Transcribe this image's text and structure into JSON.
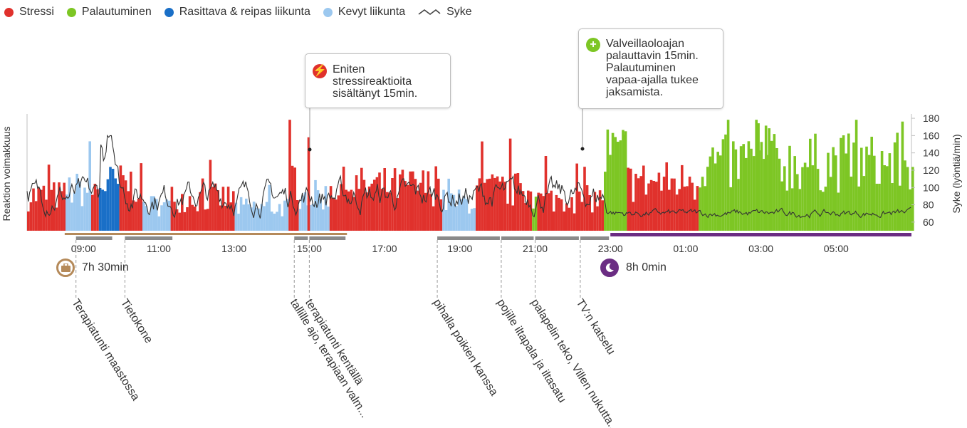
{
  "legend": [
    {
      "label": "Stressi",
      "color": "#e0312c"
    },
    {
      "label": "Palautuminen",
      "color": "#7dc624"
    },
    {
      "label": "Rasittava & reipas liikunta",
      "color": "#1a6fc7"
    },
    {
      "label": "Kevyt liikunta",
      "color": "#9cc8ef"
    },
    {
      "label": "Syke",
      "color": "#444444",
      "icon": "line-wave-icon"
    }
  ],
  "chart_data": {
    "type": "bar",
    "ylabel_left": "Reaktion voimakkuus",
    "ylabel_right": "Syke (lyöntiä/min)",
    "right_axis_ticks": [
      60,
      80,
      100,
      120,
      140,
      160,
      180
    ],
    "right_axis_range": [
      50,
      185
    ],
    "x_axis_start_hour": 7.5,
    "x_axis_end_hour": 31.0,
    "x_tick_labels": [
      "09:00",
      "11:00",
      "13:00",
      "15:00",
      "17:00",
      "19:00",
      "21:00",
      "23:00",
      "01:00",
      "03:00",
      "05:00"
    ],
    "x_tick_hours": [
      9,
      11,
      13,
      15,
      17,
      19,
      21,
      23,
      25,
      27,
      29
    ],
    "segments": [
      {
        "type": "stress",
        "start": 7.5,
        "end": 8.5,
        "level": 0.3
      },
      {
        "type": "light",
        "start": 8.5,
        "end": 9.2,
        "level": 0.35
      },
      {
        "type": "stress",
        "start": 9.2,
        "end": 9.4,
        "level": 0.35
      },
      {
        "type": "vigorous",
        "start": 9.4,
        "end": 9.9,
        "level": 0.4
      },
      {
        "type": "stress",
        "start": 9.9,
        "end": 10.5,
        "level": 0.4
      },
      {
        "type": "light",
        "start": 10.5,
        "end": 11.3,
        "level": 0.22
      },
      {
        "type": "stress",
        "start": 11.3,
        "end": 13.0,
        "level": 0.28
      },
      {
        "type": "light",
        "start": 13.0,
        "end": 14.4,
        "level": 0.2
      },
      {
        "type": "stress",
        "start": 14.4,
        "end": 14.7,
        "level": 0.45
      },
      {
        "type": "light",
        "start": 14.7,
        "end": 15.5,
        "level": 0.3
      },
      {
        "type": "stress",
        "start": 15.5,
        "end": 18.5,
        "level": 0.38
      },
      {
        "type": "light",
        "start": 18.5,
        "end": 19.4,
        "level": 0.25
      },
      {
        "type": "stress",
        "start": 19.4,
        "end": 20.9,
        "level": 0.35
      },
      {
        "type": "recovery",
        "start": 20.9,
        "end": 21.0,
        "level": 0.3
      },
      {
        "type": "stress",
        "start": 21.0,
        "end": 22.8,
        "level": 0.27
      },
      {
        "type": "recovery",
        "start": 22.8,
        "end": 23.4,
        "level": 0.65
      },
      {
        "type": "stress",
        "start": 23.4,
        "end": 25.3,
        "level": 0.42
      },
      {
        "type": "recovery",
        "start": 25.3,
        "end": 31.0,
        "level": 0.58
      }
    ],
    "peaks": [
      {
        "hour": 14.95,
        "level": 0.8,
        "type": "stress"
      },
      {
        "hour": 21.25,
        "level": 0.64,
        "type": "stress"
      },
      {
        "hour": 23.35,
        "level": 0.82,
        "type": "recovery"
      },
      {
        "hour": 26.9,
        "level": 0.92,
        "type": "recovery"
      },
      {
        "hour": 27.1,
        "level": 0.9,
        "type": "recovery"
      }
    ]
  },
  "callouts": [
    {
      "icon": "lightning-icon",
      "color": "#e0312c",
      "text": "Eniten\nstressireaktioita\nsisältänyt 15min."
    },
    {
      "icon": "plus-icon",
      "color": "#7dc624",
      "text": "Valveillaoloajan\npalauttavin 15min.\nPalautuminen\nvapaa-ajalla tukee\njaksamista."
    }
  ],
  "work_duration": "7h 30min",
  "sleep_duration": "8h 0min",
  "colors": {
    "work_bar": "#b58a5a",
    "activity_bar": "#8a8a8a",
    "sleep_bar": "#6b2d83"
  },
  "activities": [
    {
      "label": "Terapiatunti maastossa",
      "start": 8.8,
      "end": 9.8
    },
    {
      "label": "Tietokone",
      "start": 10.1,
      "end": 11.4
    },
    {
      "label": "tallille ajo, terapiaan valm...",
      "start": 14.6,
      "end": 15.0
    },
    {
      "label": "terapiatunti kentällä",
      "start": 15.0,
      "end": 16.0
    },
    {
      "label": "pihalla poikien kanssa",
      "start": 18.4,
      "end": 20.1
    },
    {
      "label": "pojille iltapala ja iltasatu",
      "start": 20.1,
      "end": 21.0
    },
    {
      "label": "palapelin teko, Villen nukutta...",
      "start": 21.0,
      "end": 22.2
    },
    {
      "label": "TV:n katselu",
      "start": 22.2,
      "end": 23.0
    }
  ]
}
